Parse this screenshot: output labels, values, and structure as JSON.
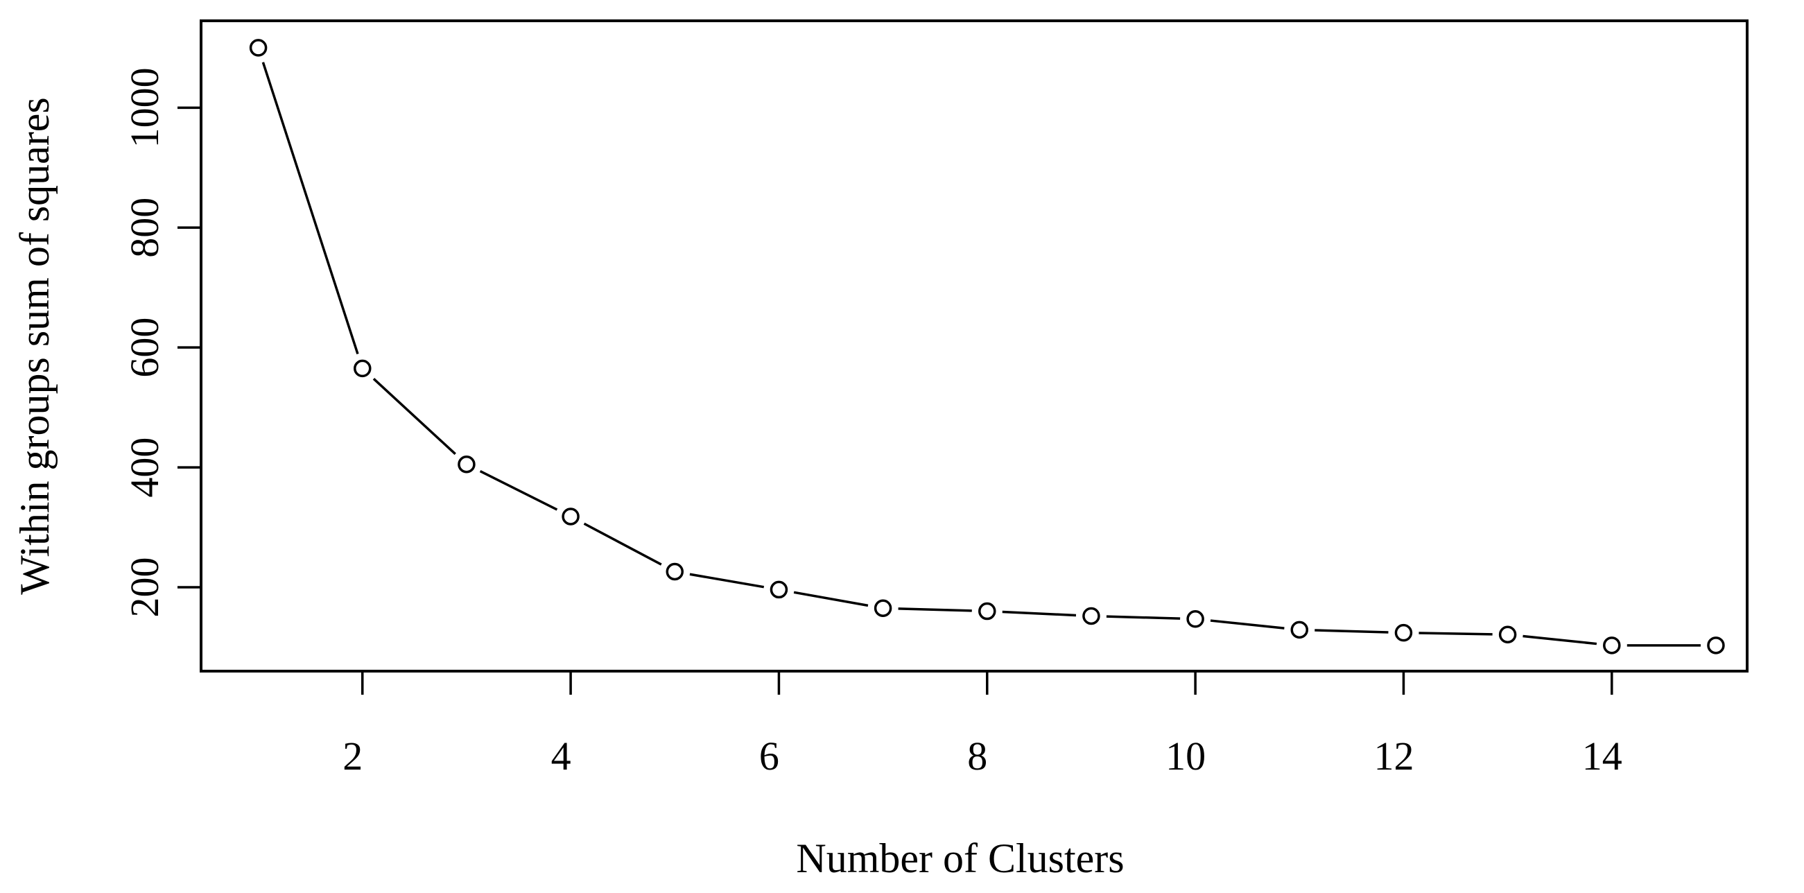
{
  "chart_data": {
    "type": "line",
    "title": "",
    "xlabel": "Number of Clusters",
    "ylabel": "Within groups sum of squares",
    "x": [
      1,
      2,
      3,
      4,
      5,
      6,
      7,
      8,
      9,
      10,
      11,
      12,
      13,
      14,
      15
    ],
    "series": [
      {
        "values": [
          1100,
          565,
          405,
          318,
          226,
          196,
          165,
          160,
          152,
          147,
          129,
          124,
          121,
          103,
          103
        ]
      }
    ],
    "xlim": [
      0.45,
      15.3
    ],
    "ylim": [
      60,
      1145
    ],
    "x_ticks": [
      2,
      4,
      6,
      8,
      10,
      12,
      14
    ],
    "y_ticks": [
      200,
      400,
      600,
      800,
      1000
    ],
    "x_tick_labels": [
      "2",
      "4",
      "6",
      "8",
      "10",
      "12",
      "14"
    ],
    "y_tick_labels": [
      "200",
      "400",
      "600",
      "800",
      "1000"
    ],
    "grid": false,
    "legend": "none",
    "marker": "open-circle",
    "line_style": "line with gaps at points (type b)",
    "colors": {
      "line": "#000000",
      "marker_stroke": "#000000",
      "marker_fill": "#ffffff",
      "background": "#ffffff"
    }
  }
}
